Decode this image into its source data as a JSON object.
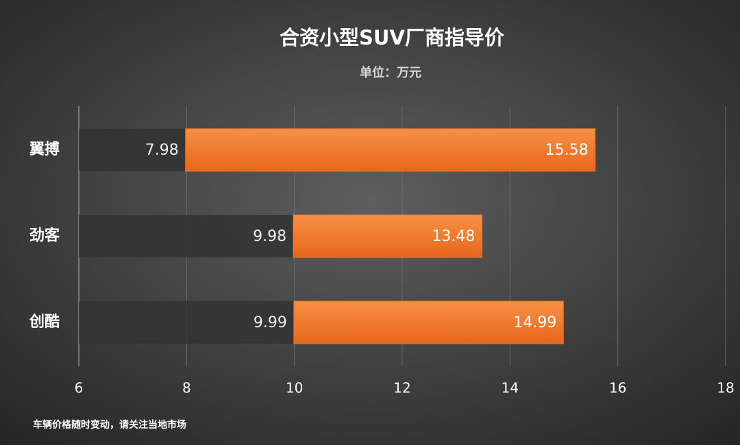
{
  "chart_data": {
    "type": "range-bar",
    "title": "合资小型SUV厂商指导价",
    "subtitle": "单位：万元",
    "footnote": "车辆价格随时变动，请关注当地市场",
    "categories": [
      "翼搏",
      "劲客",
      "创酷"
    ],
    "series": [
      {
        "color": "#333333",
        "values": [
          7.98,
          9.98,
          9.99
        ]
      },
      {
        "color": "#f07a2a",
        "values": [
          15.58,
          13.48,
          14.99
        ]
      }
    ],
    "xlim": [
      6,
      18
    ],
    "xticks": [
      6,
      8,
      10,
      12,
      14,
      16,
      18
    ],
    "grid": true
  }
}
